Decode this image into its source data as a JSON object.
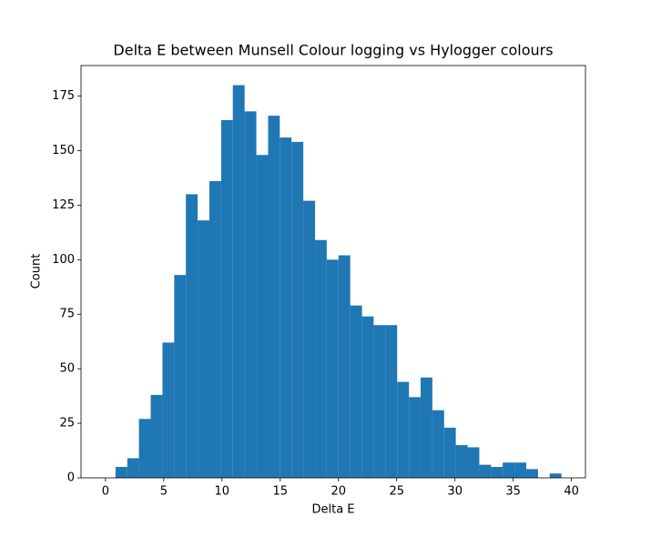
{
  "chart_data": {
    "type": "histogram",
    "title": "Delta E between Munsell Colour logging vs Hylogger colours",
    "x_label": "Delta E",
    "y_label": "Count",
    "color": "#1f77b4",
    "bins": [
      0.86,
      1.87,
      2.87,
      3.88,
      4.89,
      5.9,
      6.9,
      7.91,
      8.92,
      9.93,
      10.93,
      11.94,
      12.95,
      13.96,
      14.96,
      15.97,
      16.98,
      17.99,
      18.99,
      20.0,
      21.01,
      22.02,
      23.02,
      24.03,
      25.04,
      26.05,
      27.05,
      28.06,
      29.07,
      30.07,
      31.08,
      32.09,
      33.1,
      34.1,
      35.11,
      36.12,
      37.13,
      38.13,
      39.14
    ],
    "counts": [
      5,
      9,
      27,
      38,
      62,
      93,
      130,
      118,
      136,
      164,
      180,
      168,
      148,
      166,
      156,
      154,
      127,
      109,
      100,
      102,
      79,
      74,
      70,
      70,
      44,
      37,
      46,
      31,
      23,
      15,
      14,
      6,
      5,
      7,
      7,
      4,
      0,
      2
    ],
    "xlim": [
      -2.1,
      41.2
    ],
    "xticks": [
      0,
      5,
      10,
      15,
      20,
      25,
      30,
      35,
      40
    ],
    "ylim": [
      0,
      189
    ],
    "yticks": [
      0,
      25,
      50,
      75,
      100,
      125,
      150,
      175
    ]
  }
}
